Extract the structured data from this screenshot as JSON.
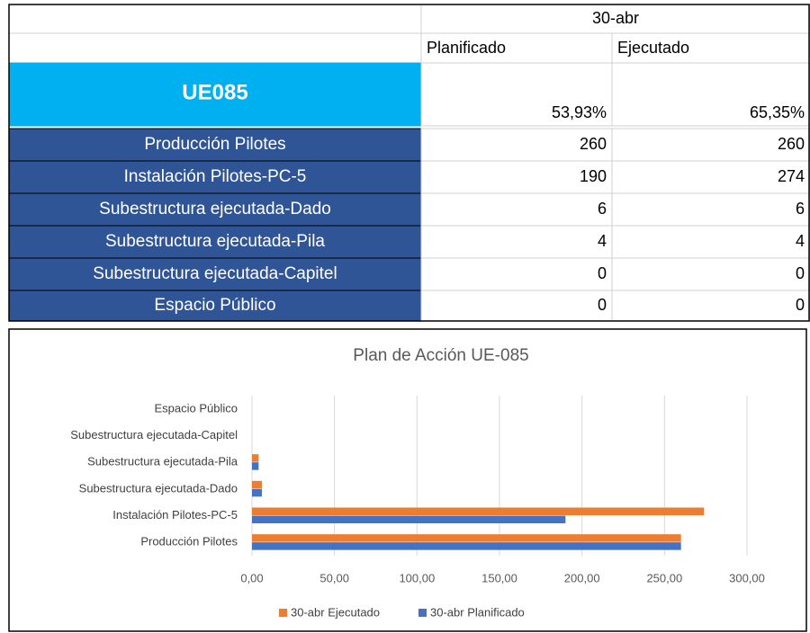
{
  "table": {
    "header": "30-abr",
    "columns": [
      "Planificado",
      "Ejecutado"
    ],
    "title": "UE085",
    "title_values": [
      "53,93%",
      "65,35%"
    ],
    "rows": [
      [
        "Producción Pilotes",
        "260",
        "260"
      ],
      [
        "Instalación Pilotes-PC-5",
        "190",
        "274"
      ],
      [
        "Subestructura ejecutada-Dado",
        "6",
        "6"
      ],
      [
        "Subestructura ejecutada-Pila",
        "4",
        "4"
      ],
      [
        "Subestructura ejecutada-Capitel",
        "0",
        "0"
      ],
      [
        "Espacio Público",
        "0",
        "0"
      ]
    ]
  },
  "chart_data": {
    "type": "hbar",
    "title": "Plan de Acción UE-085",
    "categories": [
      "Producción Pilotes",
      "Instalación Pilotes-PC-5",
      "Subestructura ejecutada-Dado",
      "Subestructura ejecutada-Pila",
      "Subestructura ejecutada-Capitel",
      "Espacio Público"
    ],
    "series": [
      {
        "name": "30-abr Ejecutado",
        "color": "#ed7d31",
        "values": [
          260,
          274,
          6,
          4,
          0,
          0
        ]
      },
      {
        "name": "30-abr Planificado",
        "color": "#4472c4",
        "values": [
          260,
          190,
          6,
          4,
          0,
          0
        ]
      }
    ],
    "xlim": [
      0,
      300
    ],
    "xticks": [
      {
        "value": 0,
        "label": "0,00"
      },
      {
        "value": 50,
        "label": "50,00"
      },
      {
        "value": 100,
        "label": "100,00"
      },
      {
        "value": 150,
        "label": "150,00"
      },
      {
        "value": 200,
        "label": "200,00"
      },
      {
        "value": 250,
        "label": "250,00"
      },
      {
        "value": 300,
        "label": "300,00"
      }
    ],
    "grid": true,
    "legend": "bottom"
  }
}
